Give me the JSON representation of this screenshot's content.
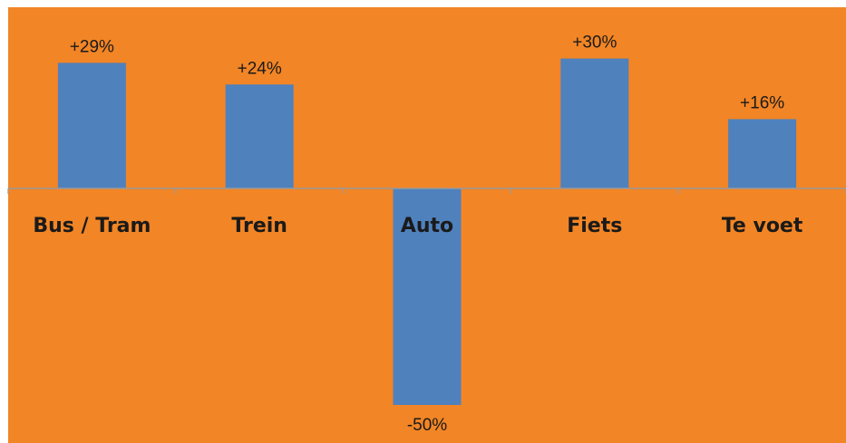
{
  "chart_data": {
    "type": "bar",
    "categories": [
      "Bus / Tram",
      "Trein",
      "Auto",
      "Fiets",
      "Te voet"
    ],
    "values": [
      29,
      24,
      -50,
      30,
      16
    ],
    "value_labels": [
      "+29%",
      "+24%",
      "-50%",
      "+30%",
      "+16%"
    ],
    "title": "",
    "xlabel": "",
    "ylabel": "",
    "ylim": [
      -50,
      30
    ],
    "grid": false,
    "legend": "none",
    "colors": {
      "background": "#F28525",
      "bar": "#4F81BD",
      "axis": "#9a9a9a",
      "text": "#1a1a1a"
    }
  }
}
